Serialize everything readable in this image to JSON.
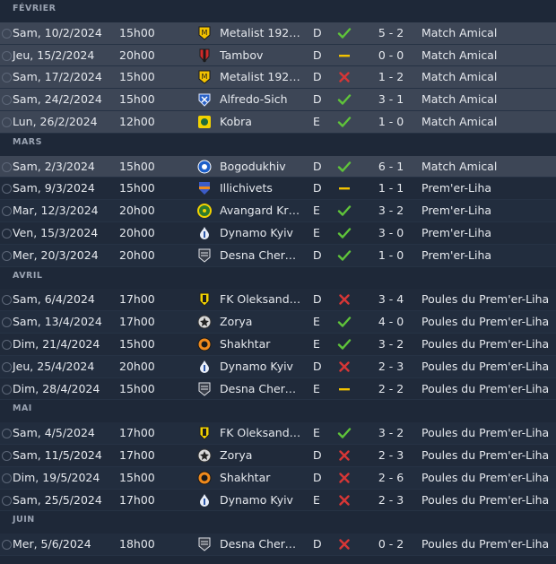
{
  "sections": [
    {
      "month": "FÉVRIER",
      "matches": [
        {
          "date": "Sam, 10/2/2024",
          "time": "15h00",
          "crest": "metalist-crest",
          "opponent": "Metalist 1925...",
          "venue": "D",
          "result": "win",
          "score": "5 - 2",
          "competition": "Match Amical",
          "highlight": true
        },
        {
          "date": "Jeu, 15/2/2024",
          "time": "20h00",
          "crest": "tambov-crest",
          "opponent": "Tambov",
          "venue": "D",
          "result": "draw",
          "score": "0 - 0",
          "competition": "Match Amical",
          "highlight": true
        },
        {
          "date": "Sam, 17/2/2024",
          "time": "15h00",
          "crest": "metalist-crest",
          "opponent": "Metalist 1925...",
          "venue": "D",
          "result": "loss",
          "score": "1 - 2",
          "competition": "Match Amical",
          "highlight": true
        },
        {
          "date": "Sam, 24/2/2024",
          "time": "15h00",
          "crest": "alfredo-sich-crest",
          "opponent": "Alfredo-Sich",
          "venue": "D",
          "result": "win",
          "score": "3 - 1",
          "competition": "Match Amical",
          "highlight": true
        },
        {
          "date": "Lun, 26/2/2024",
          "time": "12h00",
          "crest": "kobra-crest",
          "opponent": "Kobra",
          "venue": "E",
          "result": "win",
          "score": "1 - 0",
          "competition": "Match Amical",
          "highlight": true
        }
      ]
    },
    {
      "month": "MARS",
      "matches": [
        {
          "date": "Sam, 2/3/2024",
          "time": "15h00",
          "crest": "bogodukhiv-crest",
          "opponent": "Bogodukhiv",
          "venue": "D",
          "result": "win",
          "score": "6 - 1",
          "competition": "Match Amical",
          "highlight": true
        },
        {
          "date": "Sam, 9/3/2024",
          "time": "15h00",
          "crest": "illichivets-crest",
          "opponent": "Illichivets",
          "venue": "D",
          "result": "draw",
          "score": "1 - 1",
          "competition": "Prem'er-Liha"
        },
        {
          "date": "Mar, 12/3/2024",
          "time": "20h00",
          "crest": "avangard-crest",
          "opponent": "Avangard Kra...",
          "venue": "E",
          "result": "win",
          "score": "3 - 2",
          "competition": "Prem'er-Liha"
        },
        {
          "date": "Ven, 15/3/2024",
          "time": "20h00",
          "crest": "dynamo-crest",
          "opponent": "Dynamo Kyiv",
          "venue": "E",
          "result": "win",
          "score": "3 - 0",
          "competition": "Prem'er-Liha"
        },
        {
          "date": "Mer, 20/3/2024",
          "time": "20h00",
          "crest": "desna-crest",
          "opponent": "Desna Cherni...",
          "venue": "D",
          "result": "win",
          "score": "1 - 0",
          "competition": "Prem'er-Liha"
        }
      ]
    },
    {
      "month": "AVRIL",
      "matches": [
        {
          "date": "Sam, 6/4/2024",
          "time": "17h00",
          "crest": "oleksandria-crest",
          "opponent": "FK Oleksandr...",
          "venue": "D",
          "result": "loss",
          "score": "3 - 4",
          "competition": "Poules du Prem'er-Liha"
        },
        {
          "date": "Sam, 13/4/2024",
          "time": "17h00",
          "crest": "zorya-crest",
          "opponent": "Zorya",
          "venue": "E",
          "result": "win",
          "score": "4 - 0",
          "competition": "Poules du Prem'er-Liha"
        },
        {
          "date": "Dim, 21/4/2024",
          "time": "15h00",
          "crest": "shakhtar-crest",
          "opponent": "Shakhtar",
          "venue": "E",
          "result": "win",
          "score": "3 - 2",
          "competition": "Poules du Prem'er-Liha"
        },
        {
          "date": "Jeu, 25/4/2024",
          "time": "20h00",
          "crest": "dynamo-crest",
          "opponent": "Dynamo Kyiv",
          "venue": "D",
          "result": "loss",
          "score": "2 - 3",
          "competition": "Poules du Prem'er-Liha"
        },
        {
          "date": "Dim, 28/4/2024",
          "time": "15h00",
          "crest": "desna-crest",
          "opponent": "Desna Cherni...",
          "venue": "E",
          "result": "draw",
          "score": "2 - 2",
          "competition": "Poules du Prem'er-Liha"
        }
      ]
    },
    {
      "month": "MAI",
      "matches": [
        {
          "date": "Sam, 4/5/2024",
          "time": "17h00",
          "crest": "oleksandria-crest",
          "opponent": "FK Oleksandr...",
          "venue": "E",
          "result": "win",
          "score": "3 - 2",
          "competition": "Poules du Prem'er-Liha"
        },
        {
          "date": "Sam, 11/5/2024",
          "time": "17h00",
          "crest": "zorya-crest",
          "opponent": "Zorya",
          "venue": "D",
          "result": "loss",
          "score": "2 - 3",
          "competition": "Poules du Prem'er-Liha"
        },
        {
          "date": "Dim, 19/5/2024",
          "time": "15h00",
          "crest": "shakhtar-crest",
          "opponent": "Shakhtar",
          "venue": "D",
          "result": "loss",
          "score": "2 - 6",
          "competition": "Poules du Prem'er-Liha"
        },
        {
          "date": "Sam, 25/5/2024",
          "time": "17h00",
          "crest": "dynamo-crest",
          "opponent": "Dynamo Kyiv",
          "venue": "E",
          "result": "loss",
          "score": "2 - 3",
          "competition": "Poules du Prem'er-Liha"
        }
      ]
    },
    {
      "month": "JUIN",
      "matches": [
        {
          "date": "Mer, 5/6/2024",
          "time": "18h00",
          "crest": "desna-crest",
          "opponent": "Desna Cherni...",
          "venue": "D",
          "result": "loss",
          "score": "0 - 2",
          "competition": "Poules du Prem'er-Liha"
        }
      ]
    }
  ],
  "colors": {
    "win": "#5fc43a",
    "draw": "#f2c200",
    "loss": "#d63636"
  }
}
